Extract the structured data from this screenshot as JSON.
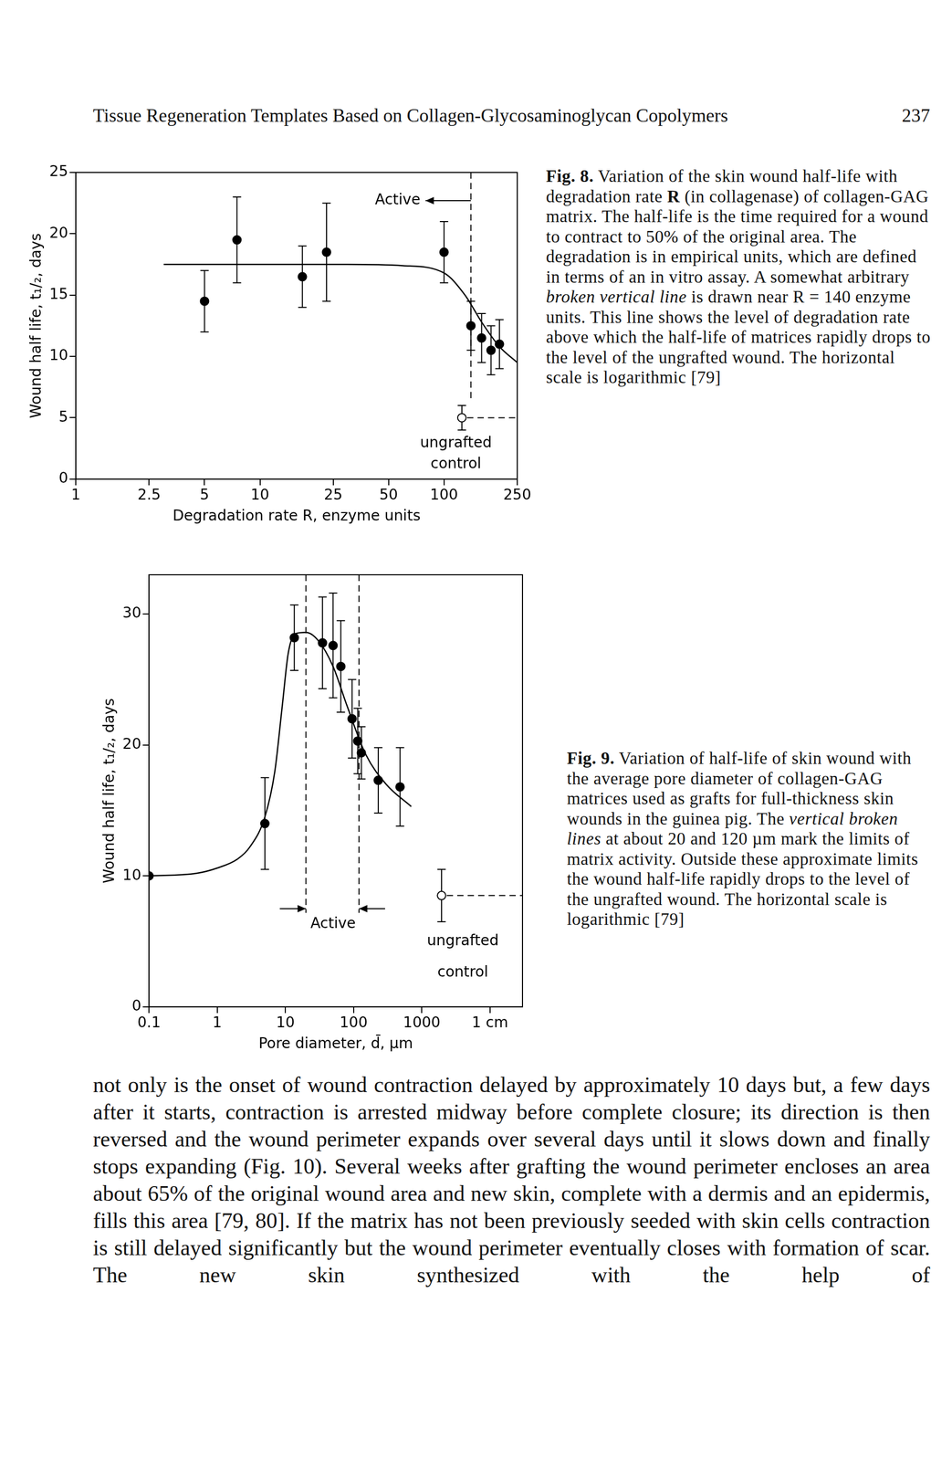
{
  "page": {
    "header": "Tissue Regeneration Templates Based on Collagen-Glycosaminoglycan Copolymers",
    "page_number": "237",
    "body": "not only is the onset of wound contraction delayed by approximately 10 days but, a few days after it starts, contraction is arrested midway before complete closure; its direction is then reversed and the wound perimeter expands over several days until it slows down and finally stops expanding (Fig. 10). Several weeks after grafting the wound perimeter encloses an area about 65% of the original wound area and new skin, complete with a dermis and an epidermis, fills this area [79, 80]. If the matrix has not been previously seeded with skin cells contraction is still delayed significantly but the wound perimeter eventually closes with formation of scar. The new skin synthesized with the help of"
  },
  "chart_data": [
    {
      "type": "scatter",
      "log": "x",
      "grid": false,
      "x_label": "Degradation rate R, enzyme units",
      "y_label": "Wound half life, t₁/₂, days",
      "xlim": [
        1,
        250
      ],
      "xticks": [
        1,
        2.5,
        5,
        10,
        25,
        50,
        100,
        250
      ],
      "ylim": [
        0,
        25
      ],
      "yticks": [
        0,
        5,
        10,
        15,
        20,
        25
      ],
      "series": [
        {
          "type": "scatter",
          "marker": "circle",
          "color": "#000000",
          "x": [
            5,
            7.5,
            17,
            23,
            100,
            140,
            160,
            180,
            200
          ],
          "values": [
            14.5,
            19.5,
            16.5,
            18.5,
            18.5,
            12.5,
            11.5,
            10.5,
            11
          ],
          "y_error": [
            2.5,
            3.5,
            2.5,
            4,
            2.5,
            2,
            2,
            2,
            2
          ]
        },
        {
          "type": "line",
          "line_style": "solid",
          "color": "#000000",
          "x": [
            3,
            10,
            30,
            60,
            100,
            130,
            160,
            200,
            250
          ],
          "values": [
            17.5,
            17.5,
            17.5,
            17.4,
            16.8,
            15,
            12.8,
            10.8,
            9.5
          ]
        },
        {
          "type": "scatter",
          "marker": "open_circle",
          "line_style": "dashed",
          "color": "#000000",
          "x": [
            125
          ],
          "values": [
            5
          ],
          "y_error": [
            1
          ]
        }
      ],
      "vlines": [
        140
      ],
      "annotations": [
        {
          "text": [
            "Active"
          ],
          "x": 56,
          "y": [
            22.7
          ]
        },
        {
          "text": [
            "ungrafted",
            "control"
          ],
          "x": 116,
          "y": [
            2.9,
            1.2
          ]
        }
      ],
      "caption": [
        {
          "text": "Fig. 8.",
          "style": "bold"
        },
        {
          "text": " Variation of the skin wound half-life with degradation rate ",
          "style": "normal"
        },
        {
          "text": "R",
          "style": "bold"
        },
        {
          "text": " (in collagenase) of collagen-GAG matrix. The half-life is the time required for a wound to contract to 50% of the original area. The degradation is in empirical units, which are defined in terms of an in vitro assay. A somewhat arbitrary ",
          "style": "normal"
        },
        {
          "text": "broken vertical line",
          "style": "italic"
        },
        {
          "text": " is drawn near R = 140 enzyme units. This line shows the level of degradation rate above which the half-life of matrices rapidly drops to the level of the ungrafted wound. The horizontal scale is logarithmic [79]",
          "style": "normal"
        }
      ]
    },
    {
      "type": "scatter",
      "log": "x",
      "grid": false,
      "x_label": "Pore diameter, d̄, µm",
      "y_label": "Wound half life, t₁/₂, days",
      "xlim": [
        0.1,
        30000
      ],
      "xticks": [
        0.1,
        1,
        10,
        100,
        1000,
        {
          "value": 10000,
          "label": "1 cm"
        }
      ],
      "ylim": [
        0,
        33
      ],
      "yticks": [
        0,
        10,
        20,
        30
      ],
      "series": [
        {
          "type": "scatter",
          "marker": "circle",
          "color": "#000000",
          "x": [
            0.1,
            5,
            13.5,
            35,
            50,
            65,
            95,
            115,
            130,
            230,
            480
          ],
          "values": [
            10,
            14,
            28.2,
            27.8,
            27.6,
            26,
            22,
            20.3,
            19.4,
            17.3,
            16.8
          ],
          "y_error": [
            null,
            3.5,
            2.5,
            3.5,
            4,
            3.5,
            3,
            2.5,
            2,
            2.5,
            3
          ]
        },
        {
          "type": "line",
          "line_style": "solid",
          "color": "#000000",
          "x": [
            0.1,
            0.5,
            1,
            2,
            3,
            5,
            7,
            9,
            11,
            14,
            20,
            30,
            50,
            80,
            150,
            300,
            700
          ],
          "values": [
            10,
            10.2,
            10.6,
            11.3,
            12.2,
            14.5,
            18,
            23,
            27,
            28.5,
            28.6,
            28,
            26,
            23,
            19.3,
            17,
            15.3
          ]
        },
        {
          "type": "scatter",
          "marker": "open_circle",
          "line_style": "dashed",
          "color": "#000000",
          "x": [
            1950
          ],
          "values": [
            8.5
          ],
          "y_error": [
            2
          ]
        }
      ],
      "vlines": [
        20,
        120
      ],
      "annotations": [
        {
          "text": [
            "Active"
          ],
          "x": 50,
          "y": [
            6.3
          ]
        },
        {
          "text": [
            "ungrafted",
            "control"
          ],
          "x": 4000,
          "y": [
            5.0,
            2.6
          ]
        }
      ],
      "caption": [
        {
          "text": "Fig. 9.",
          "style": "bold"
        },
        {
          "text": " Variation of half-life of skin wound with the average pore diameter of collagen-GAG matrices used as grafts for full-thickness skin wounds in the guinea pig. The ",
          "style": "normal"
        },
        {
          "text": "vertical broken lines",
          "style": "italic"
        },
        {
          "text": " at about 20 and 120 µm mark the limits of matrix activity. Outside these approximate limits the wound half-life rapidly drops to the level of the ungrafted wound. The horizontal scale is logarithmic [79]",
          "style": "normal"
        }
      ]
    }
  ]
}
